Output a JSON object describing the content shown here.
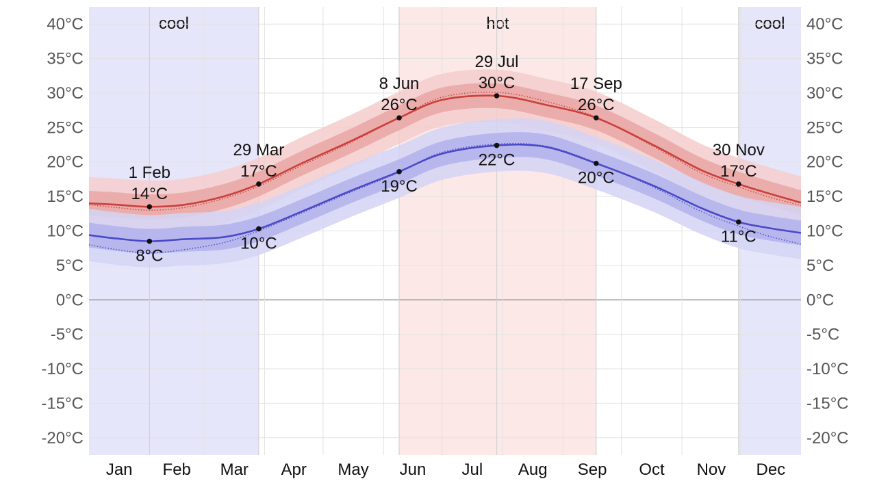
{
  "chart_data": {
    "type": "area",
    "title": "",
    "xlabel": "",
    "ylabel": "",
    "ylim": [
      -22.5,
      42.5
    ],
    "y_ticks": [
      40,
      35,
      30,
      25,
      20,
      15,
      10,
      5,
      0,
      -5,
      -10,
      -15,
      -20
    ],
    "y_tick_labels": [
      "40°C",
      "35°C",
      "30°C",
      "25°C",
      "20°C",
      "15°C",
      "10°C",
      "5°C",
      "0°C",
      "-5°C",
      "-10°C",
      "-15°C",
      "-20°C"
    ],
    "x_unit": "day of year",
    "xlim": [
      1,
      366
    ],
    "months": [
      "Jan",
      "Feb",
      "Mar",
      "Apr",
      "May",
      "Jun",
      "Jul",
      "Aug",
      "Sep",
      "Oct",
      "Nov",
      "Dec"
    ],
    "month_start_days": [
      1,
      32,
      60,
      91,
      121,
      152,
      182,
      213,
      244,
      274,
      305,
      335
    ],
    "seasons": [
      {
        "label": "cool",
        "start_day": 1,
        "end_day": 88,
        "color": "#e6e6fb"
      },
      {
        "label": "hot",
        "start_day": 160,
        "end_day": 261,
        "color": "#fde8e8"
      },
      {
        "label": "cool",
        "start_day": 334,
        "end_day": 366,
        "color": "#e6e6fb"
      }
    ],
    "series": [
      {
        "key": "high",
        "color": "#c9403c",
        "x": [
          1,
          15,
          32,
          50,
          70,
          88,
          110,
          135,
          160,
          182,
          210,
          235,
          261,
          290,
          315,
          334,
          350,
          366
        ],
        "values": [
          14.0,
          13.8,
          13.5,
          13.8,
          15.0,
          16.8,
          19.8,
          23.0,
          26.4,
          29.0,
          29.6,
          28.3,
          26.4,
          22.5,
          18.8,
          16.8,
          15.4,
          14.1
        ],
        "dotted": [
          13.8,
          13.4,
          13.0,
          13.4,
          14.7,
          16.5,
          19.5,
          22.8,
          26.4,
          29.4,
          30.1,
          28.8,
          26.5,
          22.3,
          18.4,
          16.4,
          14.9,
          13.7
        ],
        "band_inner": 1.8,
        "band_outer": 3.8
      },
      {
        "key": "low",
        "color": "#4a4ac8",
        "x": [
          1,
          15,
          32,
          50,
          70,
          88,
          110,
          135,
          160,
          182,
          210,
          235,
          261,
          290,
          315,
          334,
          350,
          366
        ],
        "values": [
          9.4,
          8.9,
          8.5,
          8.8,
          9.1,
          10.3,
          12.8,
          15.8,
          18.6,
          21.2,
          22.4,
          22.2,
          19.8,
          16.6,
          13.3,
          11.3,
          10.4,
          9.7
        ],
        "dotted": [
          8.0,
          7.3,
          6.8,
          7.3,
          8.3,
          10.0,
          12.6,
          15.6,
          18.5,
          21.4,
          22.6,
          22.3,
          19.9,
          16.4,
          12.8,
          10.7,
          9.2,
          8.1
        ],
        "band_inner": 1.8,
        "band_outer": 3.8
      }
    ],
    "annotations": [
      {
        "series": "high",
        "day": 32,
        "value": 13.5,
        "date": "1 Feb",
        "temp": "14°C",
        "position": "above"
      },
      {
        "series": "low",
        "day": 32,
        "value": 8.5,
        "date": "",
        "temp": "8°C",
        "position": "below"
      },
      {
        "series": "high",
        "day": 88,
        "value": 16.8,
        "date": "29 Mar",
        "temp": "17°C",
        "position": "above"
      },
      {
        "series": "low",
        "day": 88,
        "value": 10.3,
        "date": "",
        "temp": "10°C",
        "position": "below"
      },
      {
        "series": "high",
        "day": 160,
        "value": 26.4,
        "date": "8 Jun",
        "temp": "26°C",
        "position": "above"
      },
      {
        "series": "low",
        "day": 160,
        "value": 18.6,
        "date": "",
        "temp": "19°C",
        "position": "below"
      },
      {
        "series": "high",
        "day": 210,
        "value": 29.6,
        "date": "29 Jul",
        "temp": "30°C",
        "position": "above"
      },
      {
        "series": "low",
        "day": 210,
        "value": 22.4,
        "date": "",
        "temp": "22°C",
        "position": "below"
      },
      {
        "series": "high",
        "day": 261,
        "value": 26.4,
        "date": "17 Sep",
        "temp": "26°C",
        "position": "above"
      },
      {
        "series": "low",
        "day": 261,
        "value": 19.8,
        "date": "",
        "temp": "20°C",
        "position": "below"
      },
      {
        "series": "high",
        "day": 334,
        "value": 16.8,
        "date": "30 Nov",
        "temp": "17°C",
        "position": "above"
      },
      {
        "series": "low",
        "day": 334,
        "value": 11.3,
        "date": "",
        "temp": "11°C",
        "position": "below"
      }
    ],
    "grid": true,
    "legend": "none",
    "colors": {
      "grid": "#e2e2e2",
      "zero_line": "#999999",
      "high_band_outer": "#f4cccc",
      "high_band_inner": "#eaa9a6",
      "low_band_outer": "#d3d3f5",
      "low_band_inner": "#b4b4ec",
      "point": "#111111"
    }
  }
}
